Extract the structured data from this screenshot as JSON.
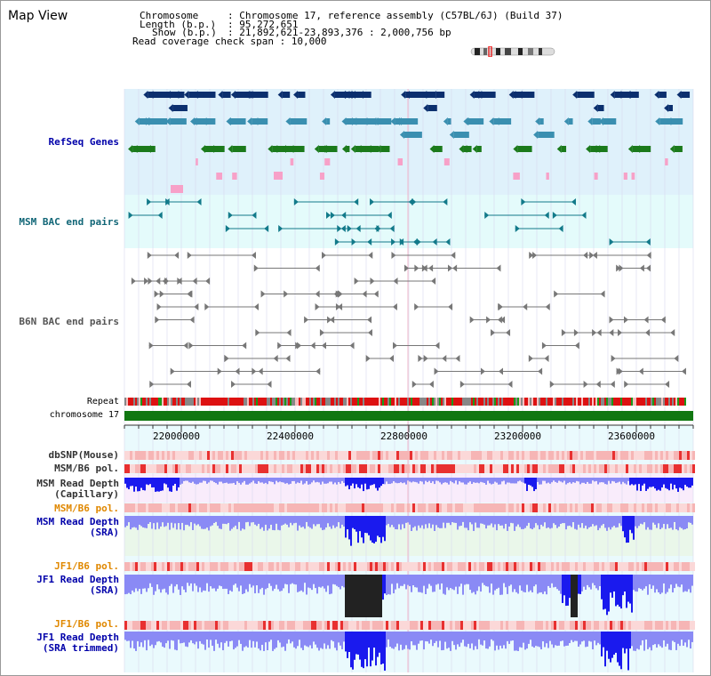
{
  "view_title": "Map View",
  "header": {
    "chromosome_key": "Chromosome",
    "chromosome_val": ": Chromosome 17, reference assembly (C57BL/6J) (Build 37)",
    "length_key": "Length (b.p.)",
    "length_val": ": 95,272,651",
    "show_key": "Show (b.p.)",
    "show_val": ": 21,892,621-23,893,376 : 2,000,756 bp",
    "coverage_line": "Read coverage check span : 10,000"
  },
  "tracks": {
    "refseq": "RefSeq Genes",
    "msm_bac": "MSM BAC end pairs",
    "b6n_bac": "B6N BAC end pairs",
    "repeat": "Repeat",
    "chromosome": "chromosome 17",
    "dbsnp": "dbSNP(Mouse)",
    "msm_pol1": "MSM/B6 pol.",
    "msm_depth_cap_1": "MSM Read Depth",
    "msm_depth_cap_2": "(Capillary)",
    "msm_pol2": "MSM/B6 pol.",
    "msm_depth_sra_1": "MSM Read Depth",
    "msm_depth_sra_2": "(SRA)",
    "jf1_pol1": "JF1/B6 pol.",
    "jf1_depth_sra_1": "JF1 Read Depth",
    "jf1_depth_sra_2": "(SRA)",
    "jf1_pol2": "JF1/B6 pol.",
    "jf1_depth_trim_1": "JF1 Read Depth",
    "jf1_depth_trim_2": "(SRA trimmed)"
  },
  "axis": {
    "ticks": [
      "22000000",
      "22400000",
      "22800000",
      "23200000",
      "23600000"
    ]
  },
  "colors": {
    "refseq_bg": "#dff1fb",
    "msm_bac_bg": "#e4fbfb",
    "gene_dark": "#0b2f6e",
    "gene_mid": "#3a8fb0",
    "gene_green": "#1b7a1b",
    "gene_pink": "#f7a1c8",
    "bac_teal": "#127a8a",
    "bac_gray": "#777777",
    "repeat_red": "#dd1111",
    "chrom_green": "#117711",
    "depth_blue": "#1a1aee",
    "depth_light": "#8a8af5",
    "jf1_black": "#222222",
    "pol_pink": "#f6b5b5",
    "pol_red": "#e83030"
  }
}
